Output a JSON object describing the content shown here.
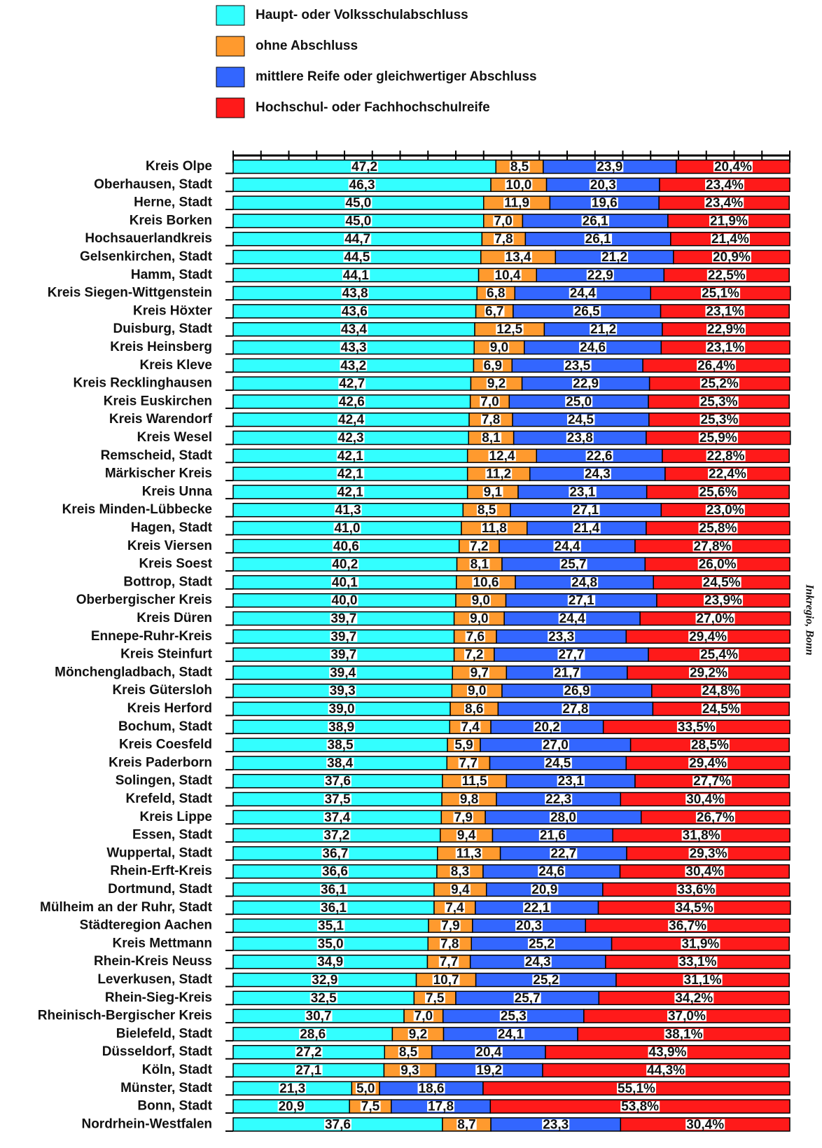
{
  "chart_data": {
    "type": "stacked_bar_horizontal",
    "source": "Inkregio, Bonn",
    "categories": [
      "Kreis Olpe",
      "Oberhausen, Stadt",
      "Herne, Stadt",
      "Kreis Borken",
      "Hochsauerlandkreis",
      "Gelsenkirchen, Stadt",
      "Hamm, Stadt",
      "Kreis Siegen-Wittgenstein",
      "Kreis Höxter",
      "Duisburg, Stadt",
      "Kreis Heinsberg",
      "Kreis Kleve",
      "Kreis Recklinghausen",
      "Kreis Euskirchen",
      "Kreis Warendorf",
      "Kreis Wesel",
      "Remscheid, Stadt",
      "Märkischer Kreis",
      "Kreis Unna",
      "Kreis Minden-Lübbecke",
      "Hagen, Stadt",
      "Kreis Viersen",
      "Kreis Soest",
      "Bottrop, Stadt",
      "Oberbergischer Kreis",
      "Kreis Düren",
      "Ennepe-Ruhr-Kreis",
      "Kreis Steinfurt",
      "Mönchengladbach, Stadt",
      "Kreis Gütersloh",
      "Kreis Herford",
      "Bochum, Stadt",
      "Kreis Coesfeld",
      "Kreis Paderborn",
      "Solingen, Stadt",
      "Krefeld, Stadt",
      "Kreis Lippe",
      "Essen, Stadt",
      "Wuppertal, Stadt",
      "Rhein-Erft-Kreis",
      "Dortmund, Stadt",
      "Mülheim an der Ruhr, Stadt",
      "Städteregion Aachen",
      "Kreis Mettmann",
      "Rhein-Kreis Neuss",
      "Leverkusen, Stadt",
      "Rhein-Sieg-Kreis",
      "Rheinisch-Bergischer Kreis",
      "Bielefeld, Stadt",
      "Düsseldorf, Stadt",
      "Köln, Stadt",
      "Münster, Stadt",
      "Bonn, Stadt",
      "Nordrhein-Westfalen"
    ],
    "xlim": [
      0,
      100
    ],
    "xticks": [
      0,
      5,
      10,
      15,
      20,
      25,
      30,
      35,
      40,
      45,
      50,
      55,
      60,
      65,
      70,
      75,
      80,
      85,
      90,
      95,
      100
    ],
    "series": [
      {
        "name": "Haupt- oder Volksschulabschluss",
        "color": "#33ffff",
        "values": [
          47.2,
          46.3,
          45.0,
          45.0,
          44.7,
          44.5,
          44.1,
          43.8,
          43.6,
          43.4,
          43.3,
          43.2,
          42.7,
          42.6,
          42.4,
          42.3,
          42.1,
          42.1,
          42.1,
          41.3,
          41.0,
          40.6,
          40.2,
          40.1,
          40.0,
          39.7,
          39.7,
          39.7,
          39.4,
          39.3,
          39.0,
          38.9,
          38.5,
          38.4,
          37.6,
          37.5,
          37.4,
          37.2,
          36.7,
          36.6,
          36.1,
          36.1,
          35.1,
          35.0,
          34.9,
          32.9,
          32.5,
          30.7,
          28.6,
          27.2,
          27.1,
          21.3,
          20.9,
          37.6
        ],
        "value_labels": [
          "47,2",
          "46,3",
          "45,0",
          "45,0",
          "44,7",
          "44,5",
          "44,1",
          "43,8",
          "43,6",
          "43,4",
          "43,3",
          "43,2",
          "42,7",
          "42,6",
          "42,4",
          "42,3",
          "42,1",
          "42,1",
          "42,1",
          "41,3",
          "41,0",
          "40,6",
          "40,2",
          "40,1",
          "40,0",
          "39,7",
          "39,7",
          "39,7",
          "39,4",
          "39,3",
          "39,0",
          "38,9",
          "38,5",
          "38,4",
          "37,6",
          "37,5",
          "37,4",
          "37,2",
          "36,7",
          "36,6",
          "36,1",
          "36,1",
          "35,1",
          "35,0",
          "34,9",
          "32,9",
          "32,5",
          "30,7",
          "28,6",
          "27,2",
          "27,1",
          "21,3",
          "20,9",
          "37,6"
        ]
      },
      {
        "name": "ohne Abschluss",
        "color": "#ff9a2e",
        "values": [
          8.5,
          10.0,
          11.9,
          7.0,
          7.8,
          13.4,
          10.4,
          6.8,
          6.7,
          12.5,
          9.0,
          6.9,
          9.2,
          7.0,
          7.8,
          8.1,
          12.4,
          11.2,
          9.1,
          8.5,
          11.8,
          7.2,
          8.1,
          10.6,
          9.0,
          9.0,
          7.6,
          7.2,
          9.7,
          9.0,
          8.6,
          7.4,
          5.9,
          7.7,
          11.5,
          9.8,
          7.9,
          9.4,
          11.3,
          8.3,
          9.4,
          7.4,
          7.9,
          7.8,
          7.7,
          10.7,
          7.5,
          7.0,
          9.2,
          8.5,
          9.3,
          5.0,
          7.5,
          8.7
        ],
        "value_labels": [
          "8,5",
          "10,0",
          "11,9",
          "7,0",
          "7,8",
          "13,4",
          "10,4",
          "6,8",
          "6,7",
          "12,5",
          "9,0",
          "6,9",
          "9,2",
          "7,0",
          "7,8",
          "8,1",
          "12,4",
          "11,2",
          "9,1",
          "8,5",
          "11,8",
          "7,2",
          "8,1",
          "10,6",
          "9,0",
          "9,0",
          "7,6",
          "7,2",
          "9,7",
          "9,0",
          "8,6",
          "7,4",
          "5,9",
          "7,7",
          "11,5",
          "9,8",
          "7,9",
          "9,4",
          "11,3",
          "8,3",
          "9,4",
          "7,4",
          "7,9",
          "7,8",
          "7,7",
          "10,7",
          "7,5",
          "7,0",
          "9,2",
          "8,5",
          "9,3",
          "5,0",
          "7,5",
          "8,7"
        ]
      },
      {
        "name": "mittlere Reife oder gleichwertiger Abschluss",
        "color": "#3366ff",
        "values": [
          23.9,
          20.3,
          19.6,
          26.1,
          26.1,
          21.2,
          22.9,
          24.4,
          26.5,
          21.2,
          24.6,
          23.5,
          22.9,
          25.0,
          24.5,
          23.8,
          22.6,
          24.3,
          23.1,
          27.1,
          21.4,
          24.4,
          25.7,
          24.8,
          27.1,
          24.4,
          23.3,
          27.7,
          21.7,
          26.9,
          27.8,
          20.2,
          27.0,
          24.5,
          23.1,
          22.3,
          28.0,
          21.6,
          22.7,
          24.6,
          20.9,
          22.1,
          20.3,
          25.2,
          24.3,
          25.2,
          25.7,
          25.3,
          24.1,
          20.4,
          19.2,
          18.6,
          17.8,
          23.3
        ],
        "value_labels": [
          "23,9",
          "20,3",
          "19,6",
          "26,1",
          "26,1",
          "21,2",
          "22,9",
          "24,4",
          "26,5",
          "21,2",
          "24,6",
          "23,5",
          "22,9",
          "25,0",
          "24,5",
          "23,8",
          "22,6",
          "24,3",
          "23,1",
          "27,1",
          "21,4",
          "24,4",
          "25,7",
          "24,8",
          "27,1",
          "24,4",
          "23,3",
          "27,7",
          "21,7",
          "26,9",
          "27,8",
          "20,2",
          "27,0",
          "24,5",
          "23,1",
          "22,3",
          "28,0",
          "21,6",
          "22,7",
          "24,6",
          "20,9",
          "22,1",
          "20,3",
          "25,2",
          "24,3",
          "25,2",
          "25,7",
          "25,3",
          "24,1",
          "20,4",
          "19,2",
          "18,6",
          "17,8",
          "23,3"
        ]
      },
      {
        "name": "Hochschul- oder Fachhochschulreife",
        "color": "#ff1a1a",
        "values": [
          20.4,
          23.4,
          23.4,
          21.9,
          21.4,
          20.9,
          22.5,
          25.1,
          23.1,
          22.9,
          23.1,
          26.4,
          25.2,
          25.3,
          25.3,
          25.9,
          22.8,
          22.4,
          25.6,
          23.0,
          25.8,
          27.8,
          26.0,
          24.5,
          23.9,
          27.0,
          29.4,
          25.4,
          29.2,
          24.8,
          24.5,
          33.5,
          28.5,
          29.4,
          27.7,
          30.4,
          26.7,
          31.8,
          29.3,
          30.4,
          33.6,
          34.5,
          36.7,
          31.9,
          33.1,
          31.1,
          34.2,
          37.0,
          38.1,
          43.9,
          44.3,
          55.1,
          53.8,
          30.4
        ],
        "value_labels": [
          "20,4%",
          "23,4%",
          "23,4%",
          "21,9%",
          "21,4%",
          "20,9%",
          "22,5%",
          "25,1%",
          "23,1%",
          "22,9%",
          "23,1%",
          "26,4%",
          "25,2%",
          "25,3%",
          "25,3%",
          "25,9%",
          "22,8%",
          "22,4%",
          "25,6%",
          "23,0%",
          "25,8%",
          "27,8%",
          "26,0%",
          "24,5%",
          "23,9%",
          "27,0%",
          "29,4%",
          "25,4%",
          "29,2%",
          "24,8%",
          "24,5%",
          "33,5%",
          "28,5%",
          "29,4%",
          "27,7%",
          "30,4%",
          "26,7%",
          "31,8%",
          "29,3%",
          "30,4%",
          "33,6%",
          "34,5%",
          "36,7%",
          "31,9%",
          "33,1%",
          "31,1%",
          "34,2%",
          "37,0%",
          "38,1%",
          "43,9%",
          "44,3%",
          "55,1%",
          "53,8%",
          "30,4%"
        ]
      }
    ]
  }
}
